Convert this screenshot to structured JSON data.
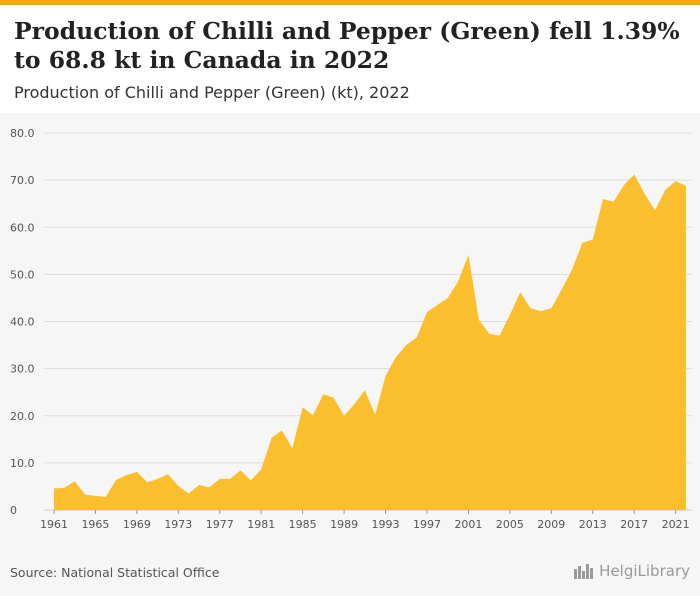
{
  "header": {
    "title": "Production of Chilli and Pepper (Green) fell 1.39% to 68.8 kt in Canada in 2022",
    "subtitle": "Production of Chilli and Pepper (Green) (kt), 2022"
  },
  "footer": {
    "source": "Source: National Statistical Office",
    "brand": "HelgiLibrary",
    "brand_icon": "library-skyline-icon"
  },
  "colors": {
    "accent": "#f5a623",
    "area_fill": "#fbbf2e",
    "grid": "#dddddd",
    "axis_text": "#555555"
  },
  "chart_data": {
    "type": "area",
    "title": "Production of Chilli and Pepper (Green) (kt), 2022",
    "xlabel": "",
    "ylabel": "",
    "ylim": [
      0,
      80
    ],
    "yticks": [
      0,
      10,
      20,
      30,
      40,
      50,
      60,
      70,
      80
    ],
    "ytick_labels": [
      "0",
      "10.0",
      "20.0",
      "30.0",
      "40.0",
      "50.0",
      "60.0",
      "70.0",
      "80.0"
    ],
    "xticks": [
      1961,
      1965,
      1969,
      1973,
      1977,
      1981,
      1985,
      1989,
      1993,
      1997,
      2001,
      2005,
      2009,
      2013,
      2017,
      2021
    ],
    "grid": true,
    "x": [
      1961,
      1962,
      1963,
      1964,
      1965,
      1966,
      1967,
      1968,
      1969,
      1970,
      1971,
      1972,
      1973,
      1974,
      1975,
      1976,
      1977,
      1978,
      1979,
      1980,
      1981,
      1982,
      1983,
      1984,
      1985,
      1986,
      1987,
      1988,
      1989,
      1990,
      1991,
      1992,
      1993,
      1994,
      1995,
      1996,
      1997,
      1998,
      1999,
      2000,
      2001,
      2002,
      2003,
      2004,
      2005,
      2006,
      2007,
      2008,
      2009,
      2010,
      2011,
      2012,
      2013,
      2014,
      2015,
      2016,
      2017,
      2018,
      2019,
      2020,
      2021,
      2022
    ],
    "series": [
      {
        "values": [
          4.6,
          4.7,
          6.1,
          3.3,
          3.0,
          2.8,
          6.4,
          7.4,
          8.1,
          5.9,
          6.6,
          7.6,
          5.1,
          3.5,
          5.3,
          4.8,
          6.6,
          6.6,
          8.4,
          6.3,
          8.6,
          15.3,
          16.9,
          13.1,
          21.8,
          20.1,
          24.6,
          23.8,
          20.0,
          22.5,
          25.4,
          20.2,
          28.5,
          32.4,
          35.0,
          36.6,
          42.0,
          43.5,
          45.0,
          48.5,
          54.1,
          40.4,
          37.4,
          37.0,
          41.4,
          46.2,
          42.8,
          42.2,
          42.8,
          46.8,
          51.0,
          56.7,
          57.4,
          66.0,
          65.4,
          68.9,
          71.2,
          67.1,
          63.6,
          67.9,
          69.8,
          68.8
        ]
      }
    ]
  }
}
